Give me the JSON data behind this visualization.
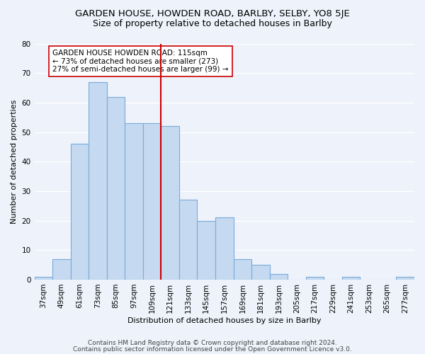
{
  "title1": "GARDEN HOUSE, HOWDEN ROAD, BARLBY, SELBY, YO8 5JE",
  "title2": "Size of property relative to detached houses in Barlby",
  "xlabel": "Distribution of detached houses by size in Barlby",
  "ylabel": "Number of detached properties",
  "bins": [
    "37sqm",
    "49sqm",
    "61sqm",
    "73sqm",
    "85sqm",
    "97sqm",
    "109sqm",
    "121sqm",
    "133sqm",
    "145sqm",
    "157sqm",
    "169sqm",
    "181sqm",
    "193sqm",
    "205sqm",
    "217sqm",
    "229sqm",
    "241sqm",
    "253sqm",
    "265sqm",
    "277sqm"
  ],
  "values": [
    1,
    7,
    46,
    67,
    62,
    53,
    53,
    52,
    27,
    20,
    21,
    7,
    5,
    2,
    0,
    1,
    0,
    1,
    0,
    0,
    1
  ],
  "bar_color": "#c5d9f0",
  "bar_edge_color": "#7aabda",
  "vline_x_index": 7.0,
  "vline_color": "#cc0000",
  "annotation_text": "GARDEN HOUSE HOWDEN ROAD: 115sqm\n← 73% of detached houses are smaller (273)\n27% of semi-detached houses are larger (99) →",
  "annotation_box_color": "#ffffff",
  "annotation_box_edge_color": "#cc0000",
  "ylim": [
    0,
    80
  ],
  "yticks": [
    0,
    10,
    20,
    30,
    40,
    50,
    60,
    70,
    80
  ],
  "footer1": "Contains HM Land Registry data © Crown copyright and database right 2024.",
  "footer2": "Contains public sector information licensed under the Open Government Licence v3.0.",
  "background_color": "#edf2fb",
  "grid_color": "#ffffff",
  "title1_fontsize": 9.5,
  "title2_fontsize": 9,
  "axis_label_fontsize": 8,
  "tick_fontsize": 7.5,
  "annotation_fontsize": 7.5,
  "footer_fontsize": 6.5
}
